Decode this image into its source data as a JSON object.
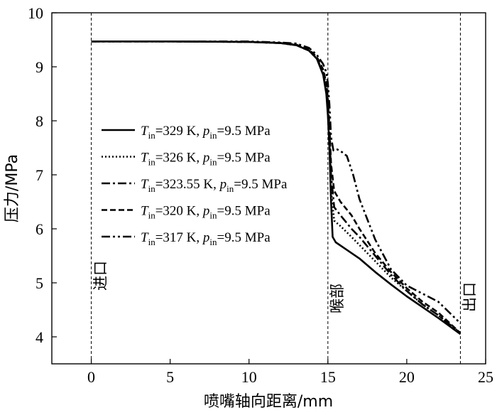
{
  "chart_data": {
    "type": "line",
    "xlabel": "喷嘴轴向距离/mm",
    "ylabel": "压力/MPa",
    "xlim": [
      -2.5,
      25
    ],
    "ylim": [
      3.5,
      10
    ],
    "xticks": [
      0,
      5,
      10,
      15,
      20,
      25
    ],
    "yticks": [
      4,
      5,
      6,
      7,
      8,
      9,
      10
    ],
    "grid": false,
    "legend_position": "center-left",
    "annotations": [
      {
        "text": "进口",
        "x": 0
      },
      {
        "text": "喉部",
        "x": 15
      },
      {
        "text": "出口",
        "x": 23.4
      }
    ],
    "series": [
      {
        "name": "T_in=329 K, p_in=9.5 MPa",
        "legend": {
          "T": "T",
          "Tsub": "in",
          "Tval": "=329 K, ",
          "p": "p",
          "psub": "in",
          "pval": "=9.5 MPa"
        },
        "dash": "solid",
        "x": [
          0,
          5,
          10,
          12,
          13,
          13.8,
          14.3,
          14.7,
          14.9,
          15.0,
          15.1,
          15.2,
          15.3,
          15.5,
          16,
          17,
          18,
          19,
          20,
          21,
          22,
          23.4
        ],
        "y": [
          9.47,
          9.47,
          9.46,
          9.44,
          9.4,
          9.3,
          9.15,
          8.85,
          8.5,
          8.1,
          7.5,
          6.5,
          5.85,
          5.75,
          5.65,
          5.45,
          5.2,
          4.97,
          4.75,
          4.55,
          4.35,
          4.05
        ]
      },
      {
        "name": "T_in=326 K, p_in=9.5 MPa",
        "legend": {
          "T": "T",
          "Tsub": "in",
          "Tval": "=326 K, ",
          "p": "p",
          "psub": "in",
          "pval": "=9.5 MPa"
        },
        "dash": "dotted",
        "x": [
          0,
          5,
          10,
          12,
          13,
          13.8,
          14.3,
          14.7,
          14.9,
          15.0,
          15.1,
          15.2,
          15.4,
          15.8,
          16.5,
          17,
          18,
          19,
          20,
          21,
          22,
          23.4
        ],
        "y": [
          9.47,
          9.47,
          9.46,
          9.44,
          9.4,
          9.3,
          9.15,
          8.9,
          8.6,
          8.3,
          7.7,
          6.7,
          6.15,
          6.05,
          5.85,
          5.7,
          5.4,
          5.1,
          4.85,
          4.6,
          4.4,
          4.07
        ]
      },
      {
        "name": "T_in=323.55 K, p_in=9.5 MPa",
        "legend": {
          "T": "T",
          "Tsub": "in",
          "Tval": "=323.55 K, ",
          "p": "p",
          "psub": "in",
          "pval": "=9.5 MPa"
        },
        "dash": "dashdot",
        "x": [
          0,
          5,
          10,
          12,
          13,
          13.8,
          14.3,
          14.7,
          14.9,
          15.0,
          15.1,
          15.2,
          15.4,
          15.8,
          16.5,
          17,
          18,
          19,
          20,
          21,
          22,
          23.4
        ],
        "y": [
          9.47,
          9.47,
          9.46,
          9.44,
          9.4,
          9.3,
          9.15,
          8.9,
          8.6,
          8.3,
          7.8,
          7.0,
          6.4,
          6.25,
          6.0,
          5.85,
          5.5,
          5.15,
          4.85,
          4.6,
          4.4,
          4.07
        ]
      },
      {
        "name": "T_in=320 K, p_in=9.5 MPa",
        "legend": {
          "T": "T",
          "Tsub": "in",
          "Tval": "=320 K, ",
          "p": "p",
          "psub": "in",
          "pval": "=9.5 MPa"
        },
        "dash": "dashed",
        "x": [
          0,
          5,
          10,
          12,
          13,
          13.8,
          14.3,
          14.7,
          14.9,
          15.0,
          15.1,
          15.2,
          15.4,
          15.8,
          16.5,
          17,
          18,
          19,
          20,
          21,
          22,
          23.4
        ],
        "y": [
          9.47,
          9.47,
          9.46,
          9.44,
          9.41,
          9.32,
          9.18,
          8.95,
          8.7,
          8.4,
          7.9,
          7.2,
          6.7,
          6.5,
          6.25,
          6.0,
          5.55,
          5.2,
          4.9,
          4.65,
          4.45,
          4.07
        ]
      },
      {
        "name": "T_in=317 K, p_in=9.5 MPa",
        "legend": {
          "T": "T",
          "Tsub": "in",
          "Tval": "=317 K, ",
          "p": "p",
          "psub": "in",
          "pval": "=9.5 MPa"
        },
        "dash": "dashdotdot",
        "x": [
          0,
          5,
          10,
          12,
          13,
          13.8,
          14.3,
          14.7,
          14.9,
          15.0,
          15.1,
          15.2,
          15.35,
          15.6,
          15.9,
          16.2,
          16.6,
          17,
          18,
          19,
          20,
          21,
          22,
          23.4
        ],
        "y": [
          9.47,
          9.47,
          9.47,
          9.45,
          9.43,
          9.35,
          9.22,
          9.05,
          8.9,
          8.7,
          8.3,
          7.7,
          7.45,
          7.47,
          7.42,
          7.35,
          7.0,
          6.55,
          5.8,
          5.25,
          4.95,
          4.8,
          4.65,
          4.25
        ]
      }
    ]
  }
}
